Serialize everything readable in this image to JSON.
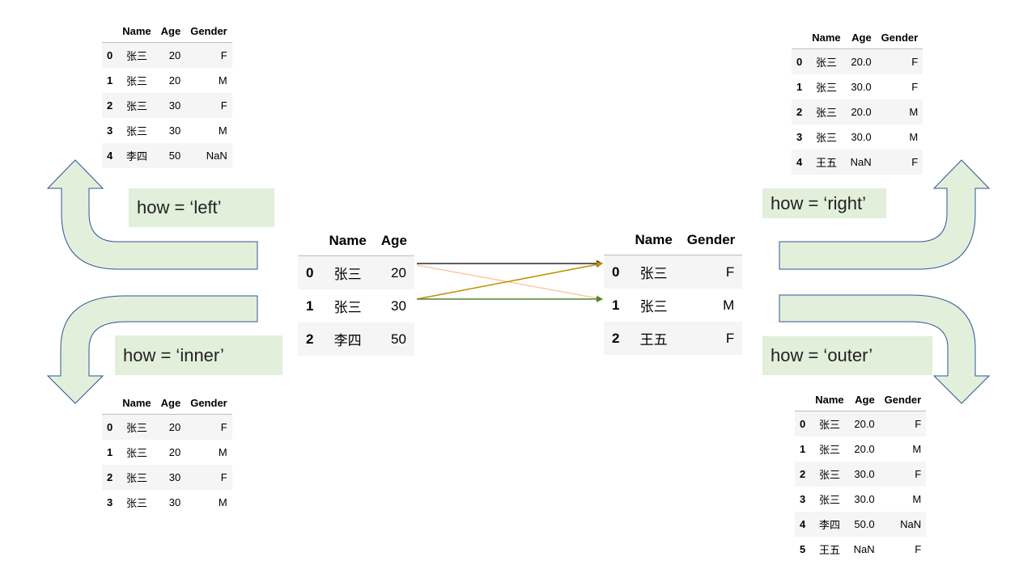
{
  "center_left": {
    "columns": [
      "Name",
      "Age"
    ],
    "rows": [
      {
        "index": "0",
        "name": "张三",
        "age": "20"
      },
      {
        "index": "1",
        "name": "张三",
        "age": "30"
      },
      {
        "index": "2",
        "name": "李四",
        "age": "50"
      }
    ]
  },
  "center_right": {
    "columns": [
      "Name",
      "Gender"
    ],
    "rows": [
      {
        "index": "0",
        "name": "张三",
        "gender": "F"
      },
      {
        "index": "1",
        "name": "张三",
        "gender": "M"
      },
      {
        "index": "2",
        "name": "王五",
        "gender": "F"
      }
    ]
  },
  "result_left": {
    "label": "how = ‘left’",
    "columns": [
      "Name",
      "Age",
      "Gender"
    ],
    "rows": [
      {
        "index": "0",
        "name": "张三",
        "age": "20",
        "gender": "F"
      },
      {
        "index": "1",
        "name": "张三",
        "age": "20",
        "gender": "M"
      },
      {
        "index": "2",
        "name": "张三",
        "age": "30",
        "gender": "F"
      },
      {
        "index": "3",
        "name": "张三",
        "age": "30",
        "gender": "M"
      },
      {
        "index": "4",
        "name": "李四",
        "age": "50",
        "gender": "NaN"
      }
    ]
  },
  "result_inner": {
    "label": "how = ‘inner’",
    "columns": [
      "Name",
      "Age",
      "Gender"
    ],
    "rows": [
      {
        "index": "0",
        "name": "张三",
        "age": "20",
        "gender": "F"
      },
      {
        "index": "1",
        "name": "张三",
        "age": "20",
        "gender": "M"
      },
      {
        "index": "2",
        "name": "张三",
        "age": "30",
        "gender": "F"
      },
      {
        "index": "3",
        "name": "张三",
        "age": "30",
        "gender": "M"
      }
    ]
  },
  "result_right": {
    "label": "how = ‘right’",
    "columns": [
      "Name",
      "Age",
      "Gender"
    ],
    "rows": [
      {
        "index": "0",
        "name": "张三",
        "age": "20.0",
        "gender": "F"
      },
      {
        "index": "1",
        "name": "张三",
        "age": "30.0",
        "gender": "F"
      },
      {
        "index": "2",
        "name": "张三",
        "age": "20.0",
        "gender": "M"
      },
      {
        "index": "3",
        "name": "张三",
        "age": "30.0",
        "gender": "M"
      },
      {
        "index": "4",
        "name": "王五",
        "age": "NaN",
        "gender": "F"
      }
    ]
  },
  "result_outer": {
    "label": "how = ‘outer’",
    "columns": [
      "Name",
      "Age",
      "Gender"
    ],
    "rows": [
      {
        "index": "0",
        "name": "张三",
        "age": "20.0",
        "gender": "F"
      },
      {
        "index": "1",
        "name": "张三",
        "age": "20.0",
        "gender": "M"
      },
      {
        "index": "2",
        "name": "张三",
        "age": "30.0",
        "gender": "F"
      },
      {
        "index": "3",
        "name": "张三",
        "age": "30.0",
        "gender": "M"
      },
      {
        "index": "4",
        "name": "李四",
        "age": "50.0",
        "gender": "NaN"
      },
      {
        "index": "5",
        "name": "王五",
        "age": "NaN",
        "gender": "F"
      }
    ]
  },
  "colors": {
    "arrow_fill": "#e2efda",
    "arrow_stroke": "#2f5597",
    "link_black": "#000000",
    "link_peach": "#f8cbad",
    "link_gold": "#bf9000",
    "link_green": "#548235"
  }
}
